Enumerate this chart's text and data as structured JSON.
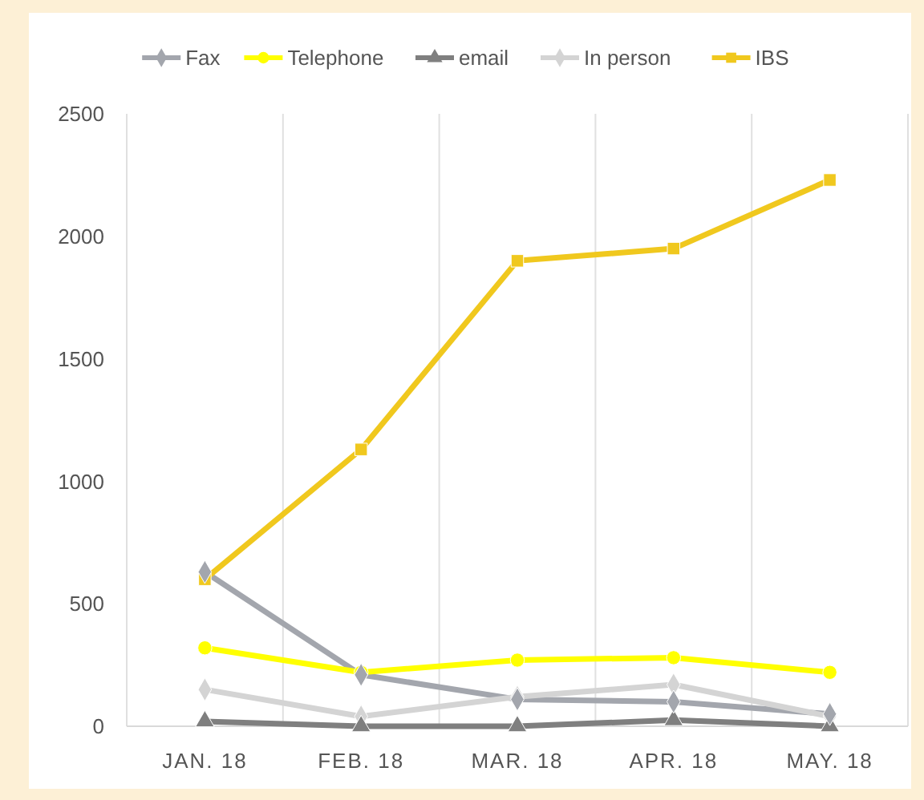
{
  "chart_data": {
    "type": "line",
    "categories": [
      "JAN. 18",
      "FEB. 18",
      "MAR. 18",
      "APR. 18",
      "MAY. 18"
    ],
    "series": [
      {
        "name": "Fax",
        "color": "#a3a6ad",
        "marker": "diamond",
        "values": [
          630,
          210,
          110,
          100,
          50
        ]
      },
      {
        "name": "Telephone",
        "color": "#ffff00",
        "marker": "circle",
        "values": [
          320,
          220,
          270,
          280,
          220
        ]
      },
      {
        "name": "email",
        "color": "#7f7f7f",
        "marker": "triangle",
        "values": [
          20,
          0,
          0,
          25,
          0
        ]
      },
      {
        "name": "In person",
        "color": "#d4d4d4",
        "marker": "diamond",
        "values": [
          150,
          40,
          120,
          170,
          40
        ]
      },
      {
        "name": "IBS",
        "color": "#f0c81e",
        "marker": "square",
        "values": [
          600,
          1130,
          1900,
          1950,
          2230
        ]
      }
    ],
    "ylim": [
      0,
      2500
    ],
    "yticks": [
      0,
      500,
      1000,
      1500,
      2000,
      2500
    ],
    "grid": "x",
    "legend": "top"
  }
}
